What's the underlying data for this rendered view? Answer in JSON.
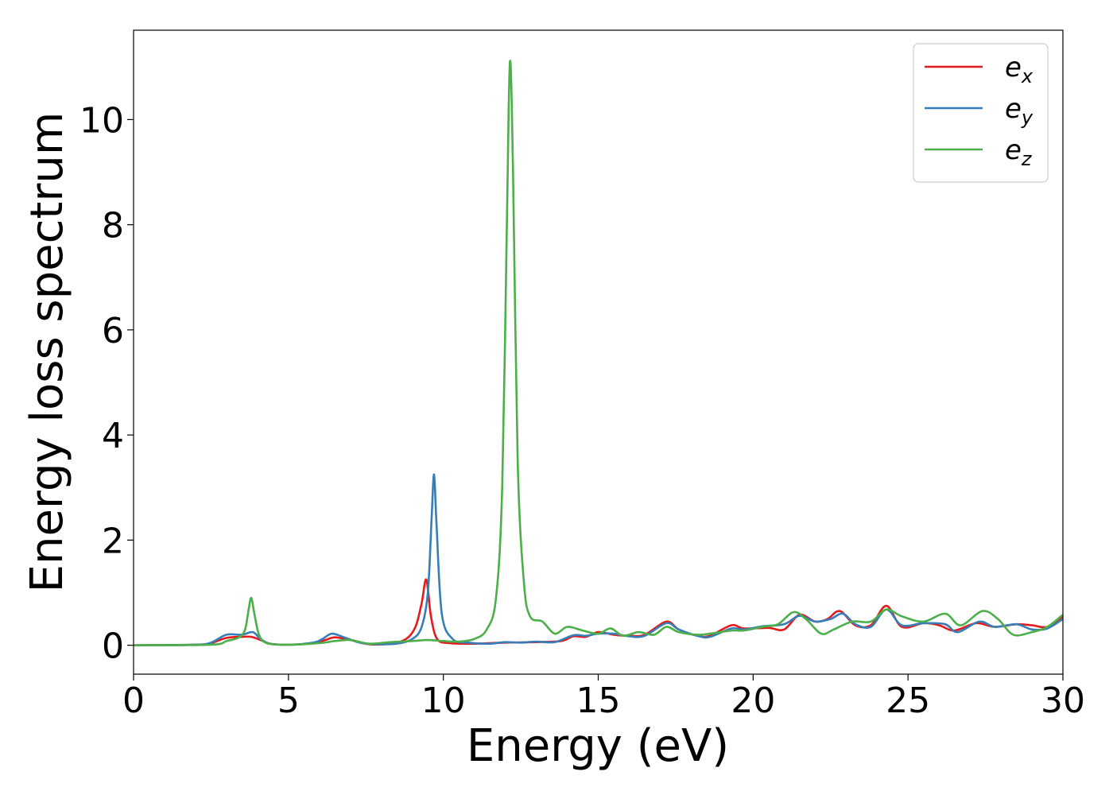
{
  "chart_data": {
    "type": "line",
    "title": "",
    "xlabel": "Energy (eV)",
    "ylabel": "Energy loss spectrum",
    "xlim": [
      0,
      30
    ],
    "ylim": [
      -0.55,
      11.7
    ],
    "xticks": [
      0,
      5,
      10,
      15,
      20,
      25,
      30
    ],
    "yticks": [
      0,
      2,
      4,
      6,
      8,
      10
    ],
    "grid": false,
    "legend_position": "top-right",
    "series": [
      {
        "name": "e",
        "subscript": "x",
        "color": "#e41a1c",
        "points": [
          [
            0,
            0
          ],
          [
            2,
            0.01
          ],
          [
            2.5,
            0.04
          ],
          [
            3.0,
            0.14
          ],
          [
            3.5,
            0.16
          ],
          [
            3.8,
            0.16
          ],
          [
            4.1,
            0.1
          ],
          [
            4.4,
            0.03
          ],
          [
            5,
            0.01
          ],
          [
            5.8,
            0.04
          ],
          [
            6.2,
            0.1
          ],
          [
            6.5,
            0.15
          ],
          [
            7.0,
            0.1
          ],
          [
            7.6,
            0.02
          ],
          [
            8.3,
            0.03
          ],
          [
            8.8,
            0.12
          ],
          [
            9.1,
            0.35
          ],
          [
            9.3,
            0.8
          ],
          [
            9.45,
            1.25
          ],
          [
            9.6,
            0.55
          ],
          [
            9.8,
            0.12
          ],
          [
            10.2,
            0.04
          ],
          [
            11,
            0.03
          ],
          [
            12,
            0.05
          ],
          [
            13,
            0.06
          ],
          [
            13.8,
            0.08
          ],
          [
            14.2,
            0.17
          ],
          [
            14.6,
            0.16
          ],
          [
            15,
            0.25
          ],
          [
            15.5,
            0.2
          ],
          [
            16,
            0.18
          ],
          [
            16.5,
            0.2
          ],
          [
            17.2,
            0.45
          ],
          [
            17.6,
            0.3
          ],
          [
            18.2,
            0.18
          ],
          [
            18.6,
            0.18
          ],
          [
            19.3,
            0.38
          ],
          [
            19.7,
            0.32
          ],
          [
            20.5,
            0.33
          ],
          [
            21,
            0.3
          ],
          [
            21.5,
            0.58
          ],
          [
            22,
            0.45
          ],
          [
            22.4,
            0.5
          ],
          [
            22.8,
            0.65
          ],
          [
            23.3,
            0.38
          ],
          [
            23.8,
            0.38
          ],
          [
            24.3,
            0.75
          ],
          [
            24.8,
            0.35
          ],
          [
            25.5,
            0.42
          ],
          [
            26,
            0.38
          ],
          [
            26.5,
            0.28
          ],
          [
            27.2,
            0.42
          ],
          [
            27.8,
            0.35
          ],
          [
            28.5,
            0.4
          ],
          [
            29,
            0.38
          ],
          [
            29.5,
            0.35
          ],
          [
            30,
            0.55
          ]
        ]
      },
      {
        "name": "e",
        "subscript": "y",
        "color": "#377eb8",
        "points": [
          [
            0,
            0
          ],
          [
            2,
            0.01
          ],
          [
            2.5,
            0.05
          ],
          [
            3.0,
            0.2
          ],
          [
            3.5,
            0.2
          ],
          [
            3.85,
            0.25
          ],
          [
            4.1,
            0.12
          ],
          [
            4.4,
            0.03
          ],
          [
            5,
            0.01
          ],
          [
            5.8,
            0.05
          ],
          [
            6.1,
            0.12
          ],
          [
            6.4,
            0.22
          ],
          [
            6.8,
            0.15
          ],
          [
            7.3,
            0.05
          ],
          [
            7.8,
            0.02
          ],
          [
            8.5,
            0.03
          ],
          [
            9.0,
            0.12
          ],
          [
            9.3,
            0.35
          ],
          [
            9.5,
            1.0
          ],
          [
            9.62,
            2.4
          ],
          [
            9.7,
            3.25
          ],
          [
            9.78,
            2.3
          ],
          [
            9.95,
            0.6
          ],
          [
            10.3,
            0.12
          ],
          [
            10.8,
            0.05
          ],
          [
            11.5,
            0.03
          ],
          [
            12,
            0.06
          ],
          [
            12.5,
            0.05
          ],
          [
            13,
            0.07
          ],
          [
            13.6,
            0.06
          ],
          [
            14.2,
            0.19
          ],
          [
            14.6,
            0.18
          ],
          [
            15,
            0.22
          ],
          [
            15.5,
            0.22
          ],
          [
            16,
            0.17
          ],
          [
            16.5,
            0.18
          ],
          [
            17.2,
            0.42
          ],
          [
            17.6,
            0.3
          ],
          [
            18.2,
            0.18
          ],
          [
            18.6,
            0.16
          ],
          [
            19.3,
            0.32
          ],
          [
            19.7,
            0.3
          ],
          [
            20.3,
            0.36
          ],
          [
            21,
            0.4
          ],
          [
            21.5,
            0.56
          ],
          [
            22,
            0.45
          ],
          [
            22.5,
            0.5
          ],
          [
            22.9,
            0.6
          ],
          [
            23.3,
            0.4
          ],
          [
            23.8,
            0.35
          ],
          [
            24.3,
            0.68
          ],
          [
            24.8,
            0.38
          ],
          [
            25.5,
            0.42
          ],
          [
            26.2,
            0.4
          ],
          [
            26.6,
            0.25
          ],
          [
            27.3,
            0.45
          ],
          [
            27.8,
            0.35
          ],
          [
            28.5,
            0.4
          ],
          [
            29,
            0.3
          ],
          [
            29.5,
            0.32
          ],
          [
            30,
            0.5
          ]
        ]
      },
      {
        "name": "e",
        "subscript": "z",
        "color": "#4daf4a",
        "points": [
          [
            0,
            0
          ],
          [
            2.5,
            0.01
          ],
          [
            3.0,
            0.08
          ],
          [
            3.4,
            0.15
          ],
          [
            3.6,
            0.3
          ],
          [
            3.72,
            0.7
          ],
          [
            3.8,
            0.9
          ],
          [
            3.9,
            0.6
          ],
          [
            4.05,
            0.2
          ],
          [
            4.3,
            0.04
          ],
          [
            5,
            0.01
          ],
          [
            6,
            0.04
          ],
          [
            6.5,
            0.08
          ],
          [
            7.0,
            0.1
          ],
          [
            7.6,
            0.03
          ],
          [
            8.3,
            0.06
          ],
          [
            9,
            0.08
          ],
          [
            9.5,
            0.1
          ],
          [
            10,
            0.08
          ],
          [
            10.5,
            0.07
          ],
          [
            11,
            0.12
          ],
          [
            11.4,
            0.3
          ],
          [
            11.7,
            0.9
          ],
          [
            11.9,
            3.0
          ],
          [
            12.05,
            8.0
          ],
          [
            12.15,
            11.1
          ],
          [
            12.25,
            9.0
          ],
          [
            12.4,
            3.5
          ],
          [
            12.6,
            1.2
          ],
          [
            12.8,
            0.55
          ],
          [
            13.2,
            0.45
          ],
          [
            13.6,
            0.22
          ],
          [
            14,
            0.35
          ],
          [
            14.5,
            0.28
          ],
          [
            15,
            0.22
          ],
          [
            15.4,
            0.32
          ],
          [
            15.8,
            0.18
          ],
          [
            16.3,
            0.25
          ],
          [
            16.8,
            0.2
          ],
          [
            17.2,
            0.35
          ],
          [
            17.6,
            0.25
          ],
          [
            18.2,
            0.2
          ],
          [
            18.6,
            0.22
          ],
          [
            19.3,
            0.28
          ],
          [
            19.7,
            0.28
          ],
          [
            20.3,
            0.35
          ],
          [
            20.8,
            0.4
          ],
          [
            21.3,
            0.63
          ],
          [
            21.7,
            0.5
          ],
          [
            22.2,
            0.22
          ],
          [
            22.6,
            0.3
          ],
          [
            23.2,
            0.45
          ],
          [
            23.8,
            0.45
          ],
          [
            24.3,
            0.68
          ],
          [
            24.8,
            0.55
          ],
          [
            25.5,
            0.45
          ],
          [
            26.2,
            0.6
          ],
          [
            26.7,
            0.38
          ],
          [
            27.4,
            0.65
          ],
          [
            27.9,
            0.5
          ],
          [
            28.4,
            0.2
          ],
          [
            29,
            0.25
          ],
          [
            29.5,
            0.35
          ],
          [
            30,
            0.58
          ]
        ]
      }
    ]
  }
}
